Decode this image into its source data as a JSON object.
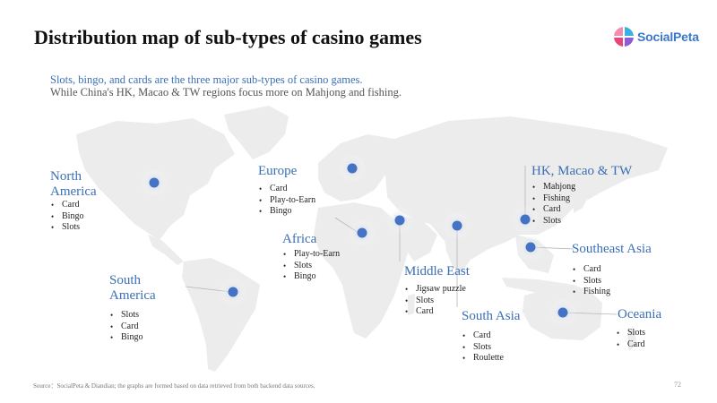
{
  "title": "Distribution map of sub-types of casino games",
  "logo": {
    "text": "SocialPeta"
  },
  "subtitle_line1": "Slots, bingo, and cards are the three major sub-types of casino games.",
  "subtitle_line2": "While China's HK, Macao & TW regions focus more on Mahjong and fishing.",
  "colors": {
    "accent": "#3a6fb7",
    "dot": "#4472c4",
    "map": "#ececec"
  },
  "regions": {
    "north_america": {
      "name_line1": "North",
      "name_line2": "America",
      "items": [
        "Card",
        "Bingo",
        "Slots"
      ]
    },
    "south_america": {
      "name_line1": "South",
      "name_line2": "America",
      "items": [
        "Slots",
        "Card",
        "Bingo"
      ]
    },
    "europe": {
      "name": "Europe",
      "items": [
        "Card",
        "Play-to-Earn",
        "Bingo"
      ]
    },
    "africa": {
      "name": "Africa",
      "items": [
        "Play-to-Earn",
        "Slots",
        "Bingo"
      ]
    },
    "middle_east": {
      "name": "Middle East",
      "items": [
        "Jigsaw puzzle",
        "Slots",
        "Card"
      ]
    },
    "south_asia": {
      "name": "South Asia",
      "items": [
        "Card",
        "Slots",
        "Roulette"
      ]
    },
    "hk_macao_tw": {
      "name": "HK, Macao & TW",
      "items": [
        "Mahjong",
        "Fishing",
        "Card",
        "Slots"
      ]
    },
    "southeast_asia": {
      "name": "Southeast Asia",
      "items": [
        "Card",
        "Slots",
        "Fishing"
      ]
    },
    "oceania": {
      "name": "Oceania",
      "items": [
        "Slots",
        "Card"
      ]
    }
  },
  "footer": "Source：SocialPeta & Diandian; the graphs are formed based on data retrieved from both backend data sources.",
  "page_number": "72"
}
